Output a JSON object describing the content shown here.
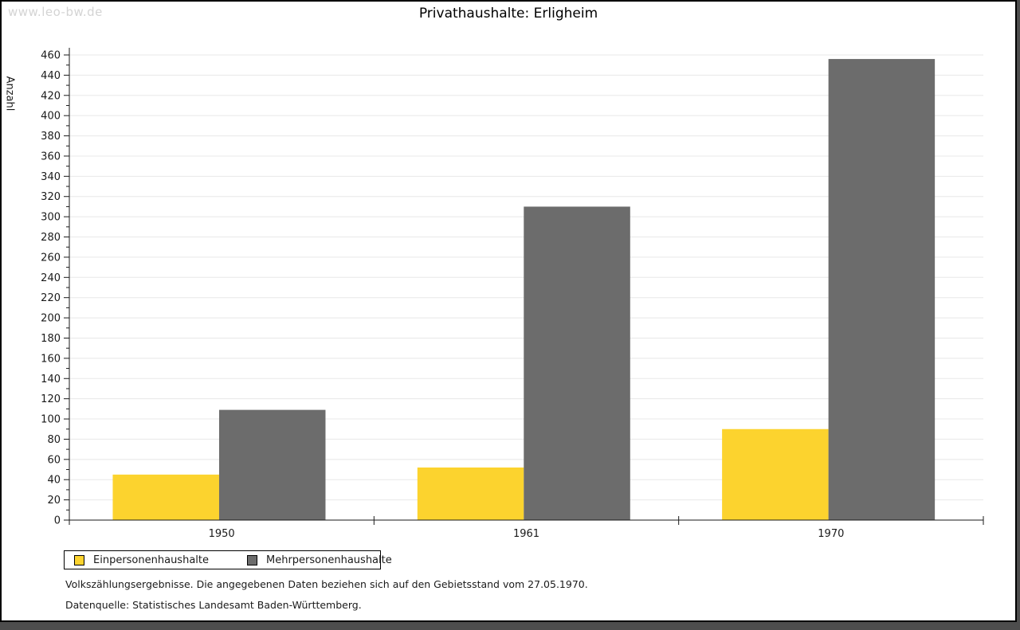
{
  "watermark": "www.leo-bw.de",
  "chart_data": {
    "type": "bar",
    "title": "Privathaushalte: Erligheim",
    "categories": [
      "1950",
      "1961",
      "1970"
    ],
    "series": [
      {
        "name": "Einpersonenhaushalte",
        "color": "#FCD32E",
        "values": [
          45,
          52,
          90
        ]
      },
      {
        "name": "Mehrpersonenhaushalte",
        "color": "#6C6C6C",
        "values": [
          109,
          310,
          456
        ]
      }
    ],
    "xlabel": "",
    "ylabel": "Anzahl",
    "ylim": [
      0,
      460
    ],
    "ytick_step": 20,
    "yminor_step": 10,
    "grid": true,
    "legend_position": "bottom-left"
  },
  "footer": {
    "line1": "Volkszählungsergebnisse. Die angegebenen Daten beziehen sich auf den Gebietsstand vom 27.05.1970.",
    "line2": "Datenquelle: Statistisches Landesamt Baden-Württemberg."
  },
  "colors": {
    "panel_background": "#FFFFFF",
    "outer_frame": "#4D4D4D",
    "panel_border": "#000000",
    "grid_line": "#E8E8E8",
    "axis_line": "#1A1A1A",
    "tick_label": "#1A1A1A",
    "watermark_text": "#D4D4D4"
  }
}
